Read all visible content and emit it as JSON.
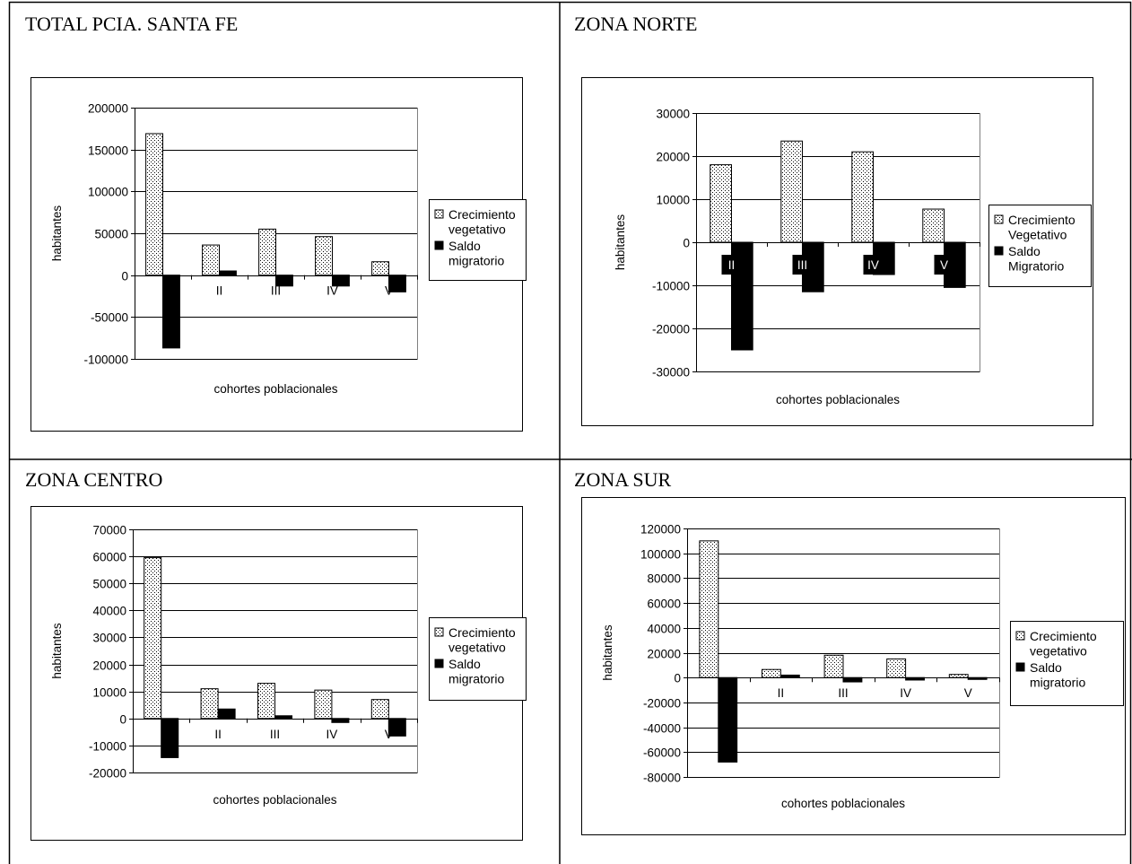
{
  "chart_data": [
    {
      "type": "bar",
      "title": "TOTAL PCIA. SANTA FE",
      "xlabel": "cohortes poblacionales",
      "ylabel": "habitantes",
      "ylim": [
        -100000,
        200000
      ],
      "yticks": [
        "200000",
        "150000",
        "100000",
        "50000",
        "0",
        "-50000",
        "-100000"
      ],
      "categories": [
        "",
        "II",
        "III",
        "IV",
        "V"
      ],
      "series": [
        {
          "name": "Crecimiento vegetativo",
          "legend_lines": [
            "Crecimiento",
            "vegetativo"
          ],
          "values": [
            169000,
            36000,
            55000,
            46000,
            16000
          ]
        },
        {
          "name": "Saldo migratorio",
          "legend_lines": [
            "Saldo",
            "migratorio"
          ],
          "values": [
            -87000,
            5000,
            -13000,
            -13000,
            -20000
          ]
        }
      ],
      "colors": {
        "pattern_fill": "#ffffff",
        "pattern_dot": "#000000",
        "solid": "#000000"
      },
      "grid": true,
      "legend": "right"
    },
    {
      "type": "bar",
      "title": "ZONA NORTE",
      "xlabel": "cohortes poblacionales",
      "ylabel": "habitantes",
      "ylim": [
        -30000,
        30000
      ],
      "yticks": [
        "30000",
        "20000",
        "10000",
        "0",
        "-10000",
        "-20000",
        "-30000"
      ],
      "categories": [
        "II",
        "III",
        "IV",
        "V"
      ],
      "series": [
        {
          "name": "Crecimiento Vegetativo",
          "legend_lines": [
            "Crecimiento",
            "Vegetativo"
          ],
          "values": [
            18000,
            23500,
            21000,
            7700
          ]
        },
        {
          "name": "Saldo Migratorio",
          "legend_lines": [
            "Saldo",
            "Migratorio"
          ],
          "values": [
            -25000,
            -11500,
            -7500,
            -10500
          ]
        }
      ],
      "colors": {
        "pattern_fill": "#ffffff",
        "pattern_dot": "#000000",
        "solid": "#000000"
      },
      "grid": true,
      "legend": "right"
    },
    {
      "type": "bar",
      "title": "ZONA CENTRO",
      "xlabel": "cohortes poblacionales",
      "ylabel": "habitantes",
      "ylim": [
        -20000,
        70000
      ],
      "yticks": [
        "70000",
        "60000",
        "50000",
        "40000",
        "30000",
        "20000",
        "10000",
        "0",
        "-10000",
        "-20000"
      ],
      "categories": [
        "",
        "II",
        "III",
        "IV",
        "V"
      ],
      "series": [
        {
          "name": "Crecimiento vegetativo",
          "legend_lines": [
            "Crecimiento",
            "vegetativo"
          ],
          "values": [
            59500,
            11000,
            13000,
            10500,
            7000
          ]
        },
        {
          "name": "Saldo migratorio",
          "legend_lines": [
            "Saldo",
            "migratorio"
          ],
          "values": [
            -14500,
            3500,
            1000,
            -1500,
            -6500
          ]
        }
      ],
      "colors": {
        "pattern_fill": "#ffffff",
        "pattern_dot": "#000000",
        "solid": "#000000"
      },
      "grid": true,
      "legend": "right"
    },
    {
      "type": "bar",
      "title": "ZONA SUR",
      "xlabel": "cohortes poblacionales",
      "ylabel": "habitantes",
      "ylim": [
        -80000,
        120000
      ],
      "yticks": [
        "120000",
        "100000",
        "80000",
        "60000",
        "40000",
        "20000",
        "0",
        "-20000",
        "-40000",
        "-60000",
        "-80000"
      ],
      "categories": [
        "",
        "II",
        "III",
        "IV",
        "V"
      ],
      "series": [
        {
          "name": "Crecimiento vegetativo",
          "legend_lines": [
            "Crecimiento",
            "vegetativo"
          ],
          "values": [
            110000,
            6500,
            18000,
            15000,
            2500
          ]
        },
        {
          "name": "Saldo migratorio",
          "legend_lines": [
            "Saldo",
            "migratorio"
          ],
          "values": [
            -68000,
            2000,
            -3500,
            -2000,
            -1500
          ]
        }
      ],
      "colors": {
        "pattern_fill": "#ffffff",
        "pattern_dot": "#000000",
        "solid": "#000000"
      },
      "grid": true,
      "legend": "right"
    }
  ]
}
